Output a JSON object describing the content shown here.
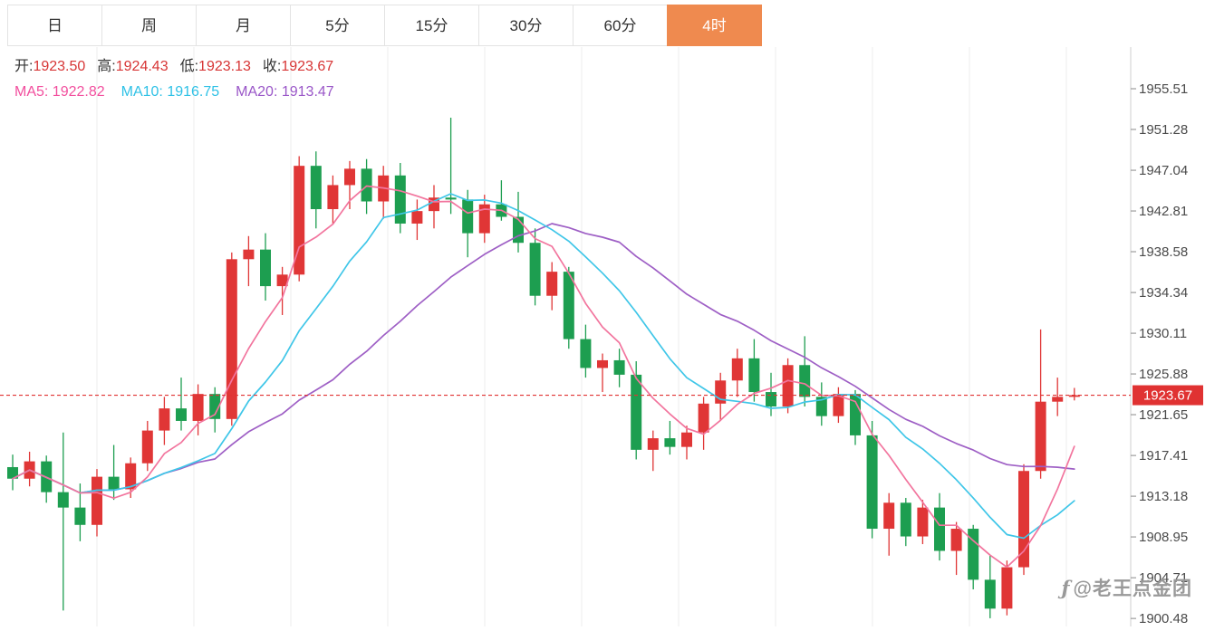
{
  "toolbar": {
    "active_color": "#ef8a4f",
    "tabs": [
      {
        "label": "日",
        "active": false
      },
      {
        "label": "周",
        "active": false
      },
      {
        "label": "月",
        "active": false
      },
      {
        "label": "5分",
        "active": false
      },
      {
        "label": "15分",
        "active": false
      },
      {
        "label": "30分",
        "active": false
      },
      {
        "label": "60分",
        "active": false
      },
      {
        "label": "4时",
        "active": true
      }
    ]
  },
  "header": {
    "value_color": "#d73535",
    "ohlc": [
      {
        "key": "open",
        "label": "开:",
        "value": "1923.50"
      },
      {
        "key": "high",
        "label": "高:",
        "value": "1924.43"
      },
      {
        "key": "low",
        "label": "低:",
        "value": "1923.13"
      },
      {
        "key": "close",
        "label": "收:",
        "value": "1923.67"
      }
    ],
    "ma": [
      {
        "key": "ma5",
        "label": "MA5:",
        "value": "1922.82",
        "color": "#f24f9e"
      },
      {
        "key": "ma10",
        "label": "MA10:",
        "value": "1916.75",
        "color": "#2fc1e6"
      },
      {
        "key": "ma20",
        "label": "MA20:",
        "value": "1913.47",
        "color": "#9a57c8"
      }
    ]
  },
  "watermark": {
    "icon": "ƒ",
    "text": "@老王点金团"
  },
  "chart_data": {
    "type": "candlestick",
    "timeframe": "4时",
    "grid": "vertical-only",
    "legend_position": "top-left-overlay",
    "up_color": "#e03636",
    "down_color": "#1d9e50",
    "last_price": 1923.67,
    "last_price_label": "1923.67",
    "last_price_color": "#e03232",
    "y_ticks": [
      1955.51,
      1951.28,
      1947.04,
      1942.81,
      1938.58,
      1934.34,
      1930.11,
      1925.88,
      1921.65,
      1917.41,
      1913.18,
      1908.95,
      1904.71,
      1900.48
    ],
    "overlays": [
      {
        "name": "MA5",
        "period": 5,
        "color": "#f2759e"
      },
      {
        "name": "MA10",
        "period": 10,
        "color": "#3fc6e8"
      },
      {
        "name": "MA20",
        "period": 20,
        "color": "#9e5fc5"
      }
    ],
    "ohlc": [
      [
        1916.2,
        1917.5,
        1913.8,
        1915.0
      ],
      [
        1915.0,
        1917.8,
        1914.2,
        1916.8
      ],
      [
        1916.8,
        1917.4,
        1912.5,
        1913.6
      ],
      [
        1913.6,
        1919.8,
        1901.3,
        1912.0
      ],
      [
        1912.0,
        1914.5,
        1908.5,
        1910.2
      ],
      [
        1910.2,
        1916.0,
        1909.0,
        1915.2
      ],
      [
        1915.2,
        1918.5,
        1912.8,
        1913.9
      ],
      [
        1913.9,
        1917.2,
        1913.0,
        1916.6
      ],
      [
        1916.6,
        1921.0,
        1915.8,
        1920.0
      ],
      [
        1920.0,
        1923.5,
        1918.5,
        1922.3
      ],
      [
        1922.3,
        1925.5,
        1920.0,
        1921.0
      ],
      [
        1921.0,
        1924.8,
        1919.5,
        1923.8
      ],
      [
        1923.8,
        1924.5,
        1919.8,
        1921.2
      ],
      [
        1921.2,
        1938.5,
        1920.5,
        1937.8
      ],
      [
        1937.8,
        1940.2,
        1935.0,
        1938.8
      ],
      [
        1938.8,
        1940.5,
        1933.5,
        1935.0
      ],
      [
        1935.0,
        1937.0,
        1932.0,
        1936.2
      ],
      [
        1936.2,
        1948.5,
        1935.5,
        1947.5
      ],
      [
        1947.5,
        1949.0,
        1941.0,
        1943.0
      ],
      [
        1943.0,
        1946.5,
        1941.5,
        1945.5
      ],
      [
        1945.5,
        1948.0,
        1943.0,
        1947.2
      ],
      [
        1947.2,
        1948.2,
        1942.5,
        1943.8
      ],
      [
        1943.8,
        1947.5,
        1942.0,
        1946.5
      ],
      [
        1946.5,
        1947.8,
        1940.5,
        1941.5
      ],
      [
        1941.5,
        1944.0,
        1939.8,
        1942.8
      ],
      [
        1942.8,
        1945.5,
        1941.0,
        1944.2
      ],
      [
        1944.2,
        1952.5,
        1942.5,
        1944.0
      ],
      [
        1944.0,
        1945.0,
        1938.0,
        1940.5
      ],
      [
        1940.5,
        1944.5,
        1939.5,
        1943.5
      ],
      [
        1943.5,
        1946.0,
        1941.8,
        1942.2
      ],
      [
        1942.2,
        1944.8,
        1938.5,
        1939.5
      ],
      [
        1939.5,
        1941.0,
        1933.0,
        1934.0
      ],
      [
        1934.0,
        1937.5,
        1932.5,
        1936.5
      ],
      [
        1936.5,
        1937.0,
        1928.5,
        1929.5
      ],
      [
        1929.5,
        1931.0,
        1925.5,
        1926.5
      ],
      [
        1926.5,
        1928.0,
        1924.0,
        1927.3
      ],
      [
        1927.3,
        1928.5,
        1924.5,
        1925.8
      ],
      [
        1925.8,
        1927.2,
        1917.0,
        1918.0
      ],
      [
        1918.0,
        1920.0,
        1915.8,
        1919.2
      ],
      [
        1919.2,
        1921.0,
        1917.5,
        1918.3
      ],
      [
        1918.3,
        1920.5,
        1917.0,
        1919.8
      ],
      [
        1919.8,
        1923.5,
        1918.0,
        1922.8
      ],
      [
        1922.8,
        1926.0,
        1921.0,
        1925.2
      ],
      [
        1925.2,
        1928.5,
        1923.5,
        1927.5
      ],
      [
        1927.5,
        1929.5,
        1923.0,
        1924.0
      ],
      [
        1924.0,
        1926.0,
        1921.5,
        1922.5
      ],
      [
        1922.5,
        1927.5,
        1921.8,
        1926.8
      ],
      [
        1926.8,
        1929.8,
        1922.5,
        1923.5
      ],
      [
        1923.5,
        1925.0,
        1920.5,
        1921.5
      ],
      [
        1921.5,
        1924.5,
        1920.8,
        1923.8
      ],
      [
        1923.8,
        1924.2,
        1918.5,
        1919.5
      ],
      [
        1919.5,
        1921.0,
        1908.8,
        1909.8
      ],
      [
        1909.8,
        1913.5,
        1907.0,
        1912.5
      ],
      [
        1912.5,
        1913.0,
        1908.0,
        1909.0
      ],
      [
        1909.0,
        1912.8,
        1908.2,
        1912.0
      ],
      [
        1912.0,
        1913.5,
        1906.5,
        1907.5
      ],
      [
        1907.5,
        1910.5,
        1905.0,
        1909.8
      ],
      [
        1909.8,
        1910.2,
        1903.5,
        1904.5
      ],
      [
        1904.5,
        1907.0,
        1900.5,
        1901.5
      ],
      [
        1901.5,
        1906.5,
        1900.8,
        1905.8
      ],
      [
        1905.8,
        1916.5,
        1905.0,
        1915.8
      ],
      [
        1915.8,
        1930.5,
        1915.0,
        1923.0
      ],
      [
        1923.0,
        1925.5,
        1921.5,
        1923.5
      ],
      [
        1923.5,
        1924.43,
        1923.13,
        1923.67
      ]
    ]
  }
}
